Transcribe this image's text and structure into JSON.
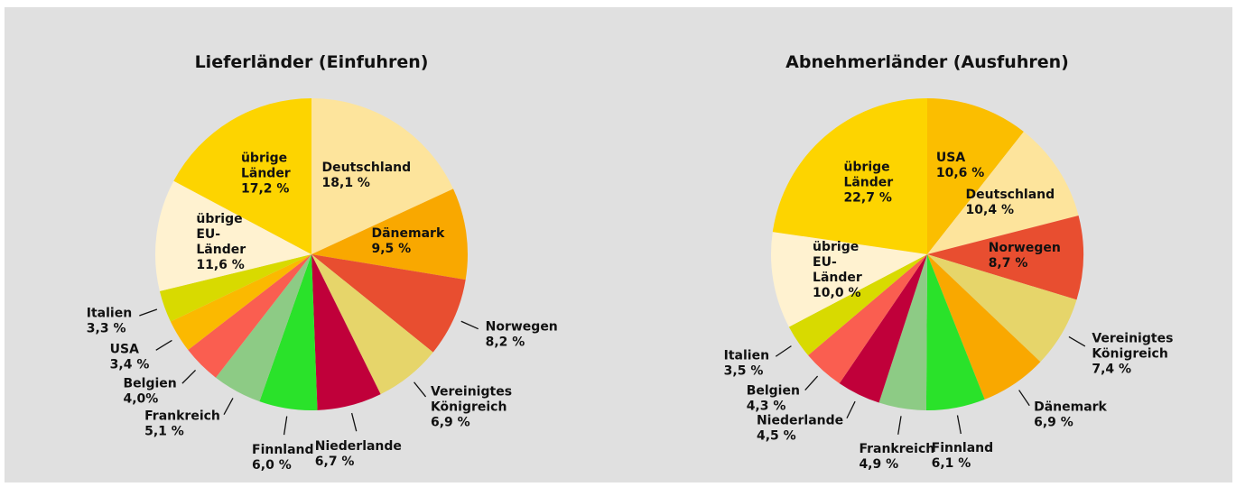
{
  "chart_data": [
    {
      "type": "pie",
      "title": "Lieferländer (Einfuhren)",
      "categories": [
        "Deutschland",
        "Dänemark",
        "Norwegen",
        "Vereinigtes Königreich",
        "Niederlande",
        "Finnland",
        "Frankreich",
        "Belgien",
        "USA",
        "Italien",
        "übrige EU-Länder",
        "übrige Länder"
      ],
      "values": [
        18.1,
        9.5,
        8.2,
        6.9,
        6.7,
        6.0,
        5.1,
        4.0,
        3.4,
        3.3,
        11.6,
        17.2
      ],
      "value_labels": [
        "18,1 %",
        "9,5 %",
        "8,2 %",
        "6,9 %",
        "6,7 %",
        "6,0 %",
        "5,1 %",
        "4,0%",
        "3,4 %",
        "3,3 %",
        "11,6 %",
        "17,2 %"
      ],
      "colors": [
        "#fde49c",
        "#f9a800",
        "#e84e30",
        "#e6d56a",
        "#c0003a",
        "#2ae22a",
        "#8dcb85",
        "#fa5e50",
        "#fbb900",
        "#d8da00",
        "#fff2d0",
        "#fdd400"
      ]
    },
    {
      "type": "pie",
      "title": "Abnehmerländer (Ausfuhren)",
      "categories": [
        "USA",
        "Deutschland",
        "Norwegen",
        "Vereinigtes Königreich",
        "Dänemark",
        "Finnland",
        "Frankreich",
        "Niederlande",
        "Belgien",
        "Italien",
        "übrige EU-Länder",
        "übrige Länder"
      ],
      "values": [
        10.6,
        10.4,
        8.7,
        7.4,
        6.9,
        6.1,
        4.9,
        4.5,
        4.3,
        3.5,
        10.0,
        22.7
      ],
      "value_labels": [
        "10,6 %",
        "10,4 %",
        "8,7 %",
        "7,4 %",
        "6,9 %",
        "6,1 %",
        "4,9 %",
        "4,5 %",
        "4,3 %",
        "3,5 %",
        "10,0 %",
        "22,7 %"
      ],
      "colors": [
        "#fbbe00",
        "#fde49c",
        "#e84e30",
        "#e6d56a",
        "#f9a800",
        "#2ae22a",
        "#8dcb85",
        "#c0003a",
        "#fa5e50",
        "#d8da00",
        "#fff2d0",
        "#fdd400"
      ]
    }
  ]
}
